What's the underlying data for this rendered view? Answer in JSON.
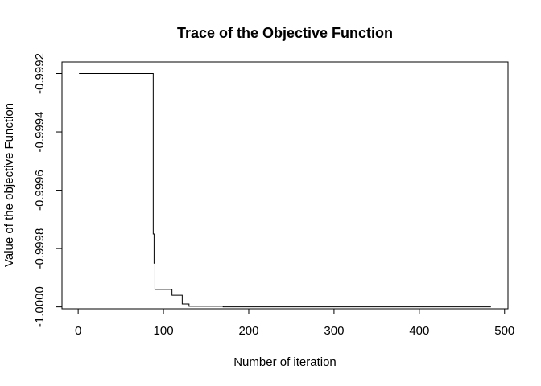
{
  "chart_data": {
    "type": "line",
    "title": "Trace of the Objective Function",
    "xlabel": "Number of iteration",
    "ylabel": "Value of the objective Function",
    "xlim": [
      -19,
      504
    ],
    "ylim": [
      -1.00000653,
      -0.99916
    ],
    "x_ticks": [
      0,
      100,
      200,
      300,
      400,
      500
    ],
    "x_tick_labels": [
      "0",
      "100",
      "200",
      "300",
      "400",
      "500"
    ],
    "y_ticks": [
      -1.0,
      -0.9998,
      -0.9996,
      -0.9994,
      -0.9992
    ],
    "y_tick_labels": [
      "-1.0000",
      "-0.9998",
      "-0.9996",
      "-0.9994",
      "-0.9992"
    ],
    "grid": false,
    "legend": "none",
    "line_color": "#000000",
    "series": [
      {
        "x": [
          1,
          88,
          88,
          89,
          89,
          90,
          90,
          91,
          91,
          110,
          110,
          122,
          122,
          130,
          130,
          170,
          170,
          484
        ],
        "y": [
          -0.9992,
          -0.9992,
          -0.99975,
          -0.99975,
          -0.99985,
          -0.99985,
          -0.99994,
          -0.99994,
          -0.99994,
          -0.99994,
          -0.99996,
          -0.99996,
          -0.99999,
          -0.99999,
          -0.999998,
          -0.999998,
          -1.0,
          -1.0
        ]
      }
    ]
  }
}
